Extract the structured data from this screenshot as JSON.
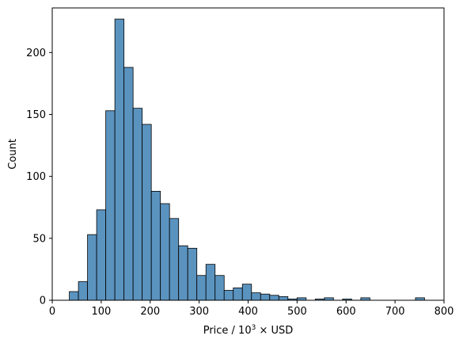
{
  "chart_data": {
    "type": "bar",
    "xlabel_prefix": "Price / 10",
    "xlabel_exp": "3",
    "xlabel_suffix": " × USD",
    "ylabel": "Count",
    "xlim": [
      0,
      800
    ],
    "ylim": [
      0,
      236
    ],
    "x_ticks": [
      0,
      100,
      200,
      300,
      400,
      500,
      600,
      700,
      800
    ],
    "y_ticks": [
      0,
      50,
      100,
      150,
      200
    ],
    "bin_width": 18.6,
    "bins": [
      {
        "start": 34.9,
        "count": 7
      },
      {
        "start": 53.5,
        "count": 15
      },
      {
        "start": 72.1,
        "count": 53
      },
      {
        "start": 90.7,
        "count": 73
      },
      {
        "start": 109.3,
        "count": 153
      },
      {
        "start": 127.9,
        "count": 227
      },
      {
        "start": 146.5,
        "count": 188
      },
      {
        "start": 165.1,
        "count": 155
      },
      {
        "start": 183.7,
        "count": 142
      },
      {
        "start": 202.3,
        "count": 88
      },
      {
        "start": 220.9,
        "count": 78
      },
      {
        "start": 239.5,
        "count": 66
      },
      {
        "start": 258.1,
        "count": 44
      },
      {
        "start": 276.7,
        "count": 42
      },
      {
        "start": 295.3,
        "count": 20
      },
      {
        "start": 313.9,
        "count": 29
      },
      {
        "start": 332.5,
        "count": 20
      },
      {
        "start": 351.1,
        "count": 8
      },
      {
        "start": 369.7,
        "count": 10
      },
      {
        "start": 388.3,
        "count": 13
      },
      {
        "start": 406.9,
        "count": 6
      },
      {
        "start": 425.5,
        "count": 5
      },
      {
        "start": 444.1,
        "count": 4
      },
      {
        "start": 462.7,
        "count": 3
      },
      {
        "start": 481.3,
        "count": 1
      },
      {
        "start": 499.9,
        "count": 2
      },
      {
        "start": 518.5,
        "count": 0
      },
      {
        "start": 537.1,
        "count": 1
      },
      {
        "start": 555.7,
        "count": 2
      },
      {
        "start": 574.3,
        "count": 0
      },
      {
        "start": 592.9,
        "count": 1
      },
      {
        "start": 611.5,
        "count": 0
      },
      {
        "start": 630.1,
        "count": 2
      },
      {
        "start": 648.7,
        "count": 0
      },
      {
        "start": 667.3,
        "count": 0
      },
      {
        "start": 685.9,
        "count": 0
      },
      {
        "start": 704.5,
        "count": 0
      },
      {
        "start": 723.1,
        "count": 0
      },
      {
        "start": 741.7,
        "count": 2
      }
    ],
    "bar_color": "#5b93bf",
    "edge_color": "#000000",
    "grid": false
  }
}
